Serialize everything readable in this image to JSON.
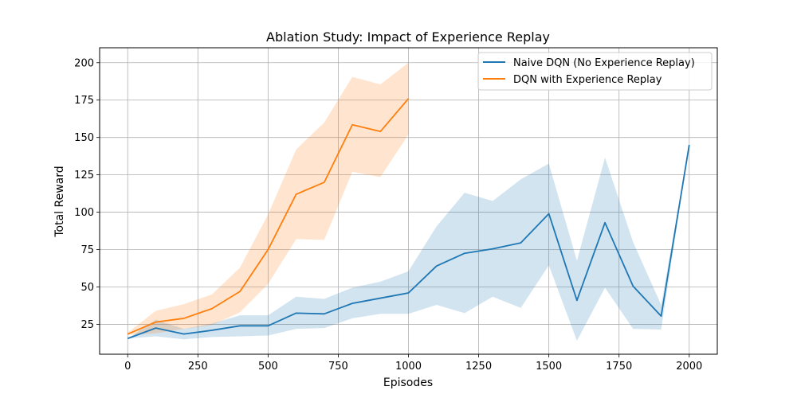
{
  "chart_data": {
    "type": "line",
    "title": "Ablation Study: Impact of Experience Replay",
    "xlabel": "Episodes",
    "ylabel": "Total Reward",
    "xlim": [
      -100,
      2100
    ],
    "ylim": [
      5,
      210
    ],
    "xticks": [
      0,
      250,
      500,
      750,
      1000,
      1250,
      1500,
      1750,
      2000
    ],
    "yticks": [
      25,
      50,
      75,
      100,
      125,
      150,
      175,
      200
    ],
    "grid": true,
    "legend_position": "top-right",
    "series": [
      {
        "name": "Naive DQN (No Experience Replay)",
        "color": "#1f77b4",
        "x": [
          0,
          100,
          200,
          300,
          400,
          500,
          600,
          700,
          800,
          900,
          1000,
          1100,
          1200,
          1300,
          1400,
          1500,
          1600,
          1700,
          1800,
          1900,
          2000
        ],
        "y": [
          15.5,
          22.5,
          18.5,
          21,
          24,
          24,
          32.5,
          32,
          39,
          42.5,
          46,
          64,
          72.5,
          75.5,
          79.5,
          99,
          41,
          93,
          50.5,
          30.5,
          145
        ],
        "lower": [
          15.5,
          17,
          15,
          16.5,
          17,
          17.5,
          22,
          22.5,
          29,
          32,
          32,
          38,
          32.5,
          43.5,
          36,
          64.5,
          14,
          49.5,
          22,
          21.5,
          145
        ],
        "upper": [
          15.5,
          28,
          22,
          25.5,
          31,
          31,
          43.5,
          42,
          49.5,
          53.5,
          60.5,
          90.5,
          113,
          107.5,
          122,
          132.5,
          67.5,
          136.5,
          80,
          38,
          145
        ]
      },
      {
        "name": "DQN with Experience Replay",
        "color": "#ff7f0e",
        "x": [
          0,
          100,
          200,
          300,
          400,
          500,
          600,
          700,
          800,
          900,
          1000
        ],
        "y": [
          18.5,
          26.5,
          29,
          35.5,
          47,
          75,
          112,
          120,
          158.5,
          154,
          176
        ],
        "lower": [
          18,
          19,
          22,
          24.5,
          33,
          52,
          82,
          81.5,
          127,
          123.5,
          152
        ],
        "upper": [
          19.5,
          34,
          38.5,
          45,
          63,
          98.5,
          142,
          160,
          190.5,
          185.5,
          200
        ]
      }
    ]
  }
}
